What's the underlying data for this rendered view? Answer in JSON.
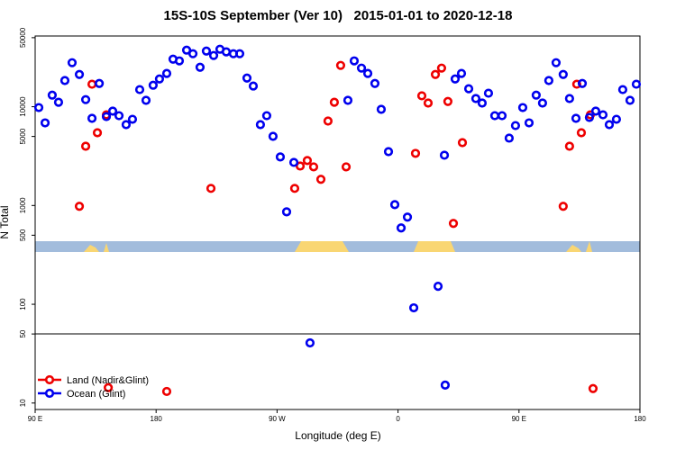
{
  "chart_data": {
    "type": "scatter",
    "title": "15S-10S September (Ver 10)   2015-01-01 to 2020-12-18",
    "x_label": "Longitude (deg E)",
    "y_label": "N Total",
    "xlim": [
      90,
      540
    ],
    "xticks": [
      {
        "value": 90,
        "label": "90 E"
      },
      180,
      {
        "value": 270,
        "label": "90 W"
      },
      {
        "value": 360,
        "label": "0"
      },
      {
        "value": 450,
        "label": "90 E"
      },
      {
        "value": 540,
        "label": "180"
      }
    ],
    "ylim": [
      8.6,
      52000
    ],
    "y_log": true,
    "yticks": [
      10,
      50,
      100,
      500,
      1000,
      5000,
      10000,
      50000
    ],
    "legend": "lower left",
    "series": [
      {
        "name": "Land (Nadir&Glint)",
        "color": "#ee0000",
        "x": [
          122.9,
          127.6,
          132.3,
          136.3,
          143.0,
          144.4,
          187.9,
          220.8,
          283.1,
          287.2,
          292.5,
          297.2,
          302.6,
          307.9,
          312.6,
          317.3,
          321.4,
          373.0,
          377.7,
          382.4,
          387.8,
          392.4,
          397.1,
          401.2,
          407.9,
          482.9,
          487.6,
          493.0,
          496.4,
          503.1,
          505.1
        ],
        "values": [
          980,
          3980,
          16900,
          5450,
          8280,
          14.3,
          13.1,
          1490,
          1490,
          2510,
          2850,
          2460,
          1840,
          7160,
          11100,
          26200,
          2460,
          3370,
          12900,
          10900,
          21200,
          24600,
          11300,
          658,
          4330,
          980,
          3980,
          16900,
          5450,
          8280,
          14.0
        ]
      },
      {
        "name": "Ocean (Glint)",
        "color": "#0000ee",
        "x": [
          92.7,
          97.4,
          102.7,
          107.4,
          112.1,
          117.5,
          122.9,
          127.6,
          132.3,
          137.7,
          143.0,
          147.7,
          152.4,
          157.7,
          162.4,
          167.8,
          172.5,
          177.8,
          182.5,
          187.9,
          192.6,
          197.3,
          202.7,
          207.4,
          212.7,
          217.4,
          222.8,
          227.5,
          232.2,
          237.5,
          242.2,
          247.6,
          252.3,
          257.6,
          262.3,
          267.0,
          272.4,
          277.1,
          282.5,
          294.5,
          322.7,
          327.4,
          332.8,
          337.5,
          342.8,
          347.5,
          352.9,
          357.6,
          362.3,
          367.0,
          371.7,
          389.8,
          394.5,
          395.1,
          402.5,
          407.2,
          412.6,
          417.9,
          422.6,
          427.3,
          432.0,
          437.4,
          442.7,
          447.4,
          452.8,
          457.5,
          462.8,
          467.5,
          472.2,
          477.6,
          482.9,
          487.6,
          492.4,
          497.1,
          502.4,
          507.1,
          512.5,
          517.2,
          522.5,
          527.2,
          532.6,
          537.3
        ],
        "values": [
          9800,
          6860,
          13100,
          11100,
          18400,
          27900,
          21200,
          11800,
          7620,
          17200,
          7940,
          9020,
          8110,
          6580,
          7460,
          14900,
          11600,
          16500,
          19100,
          21700,
          30300,
          29100,
          37400,
          34400,
          25100,
          36600,
          33000,
          38200,
          35900,
          34400,
          34400,
          19500,
          16200,
          6580,
          8110,
          5010,
          3100,
          863,
          2730,
          40.6,
          11600,
          29100,
          24600,
          21700,
          17200,
          9400,
          3510,
          1020,
          593,
          762,
          92,
          152,
          3230,
          15.2,
          19100,
          21700,
          15200,
          12100,
          10900,
          13700,
          8110,
          8110,
          4810,
          6440,
          9800,
          6860,
          13100,
          10900,
          18400,
          27900,
          21200,
          12100,
          7620,
          17200,
          7780,
          9020,
          8280,
          6580,
          7460,
          14900,
          11600,
          16900
        ]
      }
    ]
  }
}
